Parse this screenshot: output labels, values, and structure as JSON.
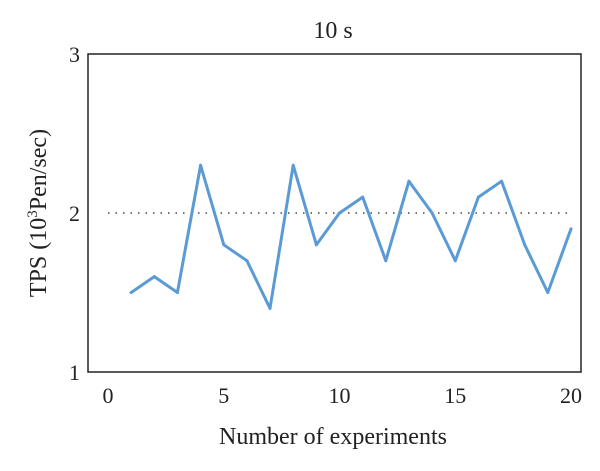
{
  "chart_data": {
    "type": "line",
    "title": "10 s",
    "xlabel": "Number of experiments",
    "ylabel": {
      "prefix": "TPS (10",
      "superscript": "3",
      "suffix": "Pen/sec)"
    },
    "xlim": [
      0,
      20
    ],
    "ylim": [
      1,
      3
    ],
    "xticks": [
      "0",
      "5",
      "10",
      "15",
      "20"
    ],
    "yticks": [
      "1",
      "2",
      "3"
    ],
    "reference_line": {
      "y": 2,
      "style": "dotted"
    },
    "series": [
      {
        "color": "#5b9bd5",
        "x": [
          1,
          2,
          3,
          4,
          5,
          6,
          7,
          8,
          9,
          10,
          11,
          12,
          13,
          14,
          15,
          16,
          17,
          18,
          19,
          20
        ],
        "y": [
          1.5,
          1.6,
          1.5,
          2.3,
          1.8,
          1.7,
          1.4,
          2.3,
          1.8,
          2.0,
          2.1,
          1.7,
          2.2,
          2.0,
          1.7,
          2.1,
          2.2,
          1.8,
          1.5,
          1.9
        ]
      }
    ]
  }
}
